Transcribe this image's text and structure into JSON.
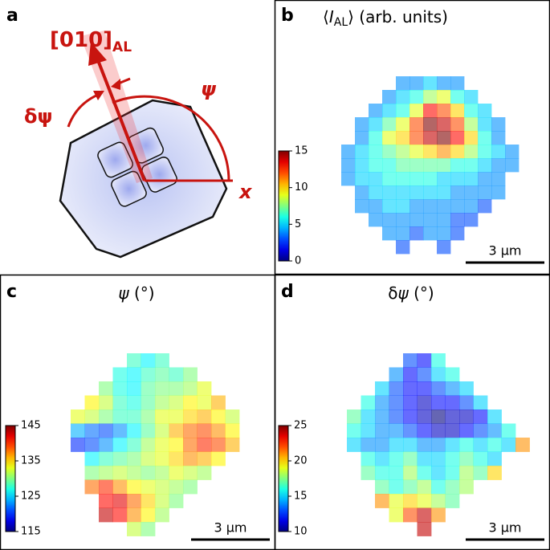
{
  "panels": {
    "a": {
      "label": "a",
      "axis_label": "[010]",
      "axis_sub": "AL",
      "angle": "ψ",
      "delta": "δψ",
      "x_label": "x"
    },
    "b": {
      "label": "b",
      "title": {
        "open": "⟨",
        "symbol": "I",
        "subscript": "AL",
        "rest": "⟩ (arb. units)"
      },
      "colorbar": {
        "lim": [
          0,
          15
        ],
        "ticks": [
          0,
          5,
          10,
          15
        ]
      },
      "scale_bar": "3 μm",
      "grid": [
        [
          null,
          null,
          null,
          null,
          4,
          4,
          5,
          4,
          4,
          null,
          null,
          null,
          null
        ],
        [
          null,
          null,
          null,
          4,
          5,
          6,
          8,
          9,
          6,
          5,
          null,
          null,
          null
        ],
        [
          null,
          null,
          4,
          5,
          6,
          9,
          13,
          12,
          10,
          6,
          5,
          null,
          null
        ],
        [
          null,
          4,
          5,
          7,
          9,
          12,
          15,
          14,
          12,
          8,
          5,
          4,
          null
        ],
        [
          null,
          4,
          6,
          9,
          10,
          12,
          14,
          15,
          13,
          10,
          6,
          4,
          null
        ],
        [
          4,
          5,
          6,
          7,
          8,
          9,
          10,
          11,
          10,
          8,
          6,
          5,
          4
        ],
        [
          4,
          5,
          6,
          6,
          7,
          7,
          7,
          7,
          6,
          6,
          5,
          4,
          4
        ],
        [
          4,
          5,
          5,
          6,
          6,
          6,
          6,
          5,
          5,
          5,
          4,
          4,
          null
        ],
        [
          null,
          4,
          5,
          5,
          5,
          5,
          5,
          5,
          4,
          4,
          4,
          4,
          null
        ],
        [
          null,
          4,
          4,
          5,
          5,
          4,
          4,
          4,
          4,
          4,
          3,
          null,
          null
        ],
        [
          null,
          null,
          4,
          4,
          4,
          4,
          4,
          4,
          3,
          3,
          null,
          null,
          null
        ],
        [
          null,
          null,
          null,
          4,
          4,
          3,
          4,
          4,
          3,
          null,
          null,
          null,
          null
        ],
        [
          null,
          null,
          null,
          null,
          3,
          null,
          null,
          3,
          null,
          null,
          null,
          null,
          null
        ]
      ]
    },
    "c": {
      "label": "c",
      "title": {
        "symbol": "ψ",
        "rest": " (°)"
      },
      "colorbar": {
        "lim": [
          115,
          145
        ],
        "ticks": [
          115,
          125,
          135,
          145
        ]
      },
      "scale_bar": "3 μm",
      "grid": [
        [
          null,
          null,
          null,
          null,
          128,
          126,
          128,
          null,
          null,
          null,
          null,
          null,
          null
        ],
        [
          null,
          null,
          null,
          127,
          126,
          128,
          129,
          128,
          130,
          null,
          null,
          null,
          null
        ],
        [
          null,
          null,
          130,
          127,
          126,
          129,
          130,
          130,
          131,
          133,
          null,
          null,
          null
        ],
        [
          null,
          134,
          132,
          128,
          127,
          129,
          131,
          132,
          134,
          133,
          136,
          null,
          null
        ],
        [
          133,
          132,
          130,
          128,
          128,
          130,
          133,
          133,
          135,
          136,
          134,
          132,
          null
        ],
        [
          124,
          122,
          121,
          123,
          126,
          129,
          132,
          136,
          138,
          139,
          137,
          134,
          null
        ],
        [
          120,
          121,
          123,
          126,
          128,
          131,
          133,
          134,
          138,
          140,
          139,
          136,
          null
        ],
        [
          null,
          126,
          128,
          129,
          130,
          132,
          133,
          135,
          137,
          136,
          134,
          null,
          null
        ],
        [
          null,
          130,
          131,
          132,
          131,
          130,
          131,
          133,
          132,
          131,
          null,
          null,
          null
        ],
        [
          null,
          138,
          140,
          137,
          134,
          133,
          132,
          131,
          130,
          null,
          null,
          null,
          null
        ],
        [
          null,
          null,
          141,
          142,
          138,
          135,
          132,
          130,
          null,
          null,
          null,
          null,
          null
        ],
        [
          null,
          null,
          143,
          141,
          137,
          134,
          131,
          null,
          null,
          null,
          null,
          null,
          null
        ],
        [
          null,
          null,
          null,
          null,
          132,
          130,
          null,
          null,
          null,
          null,
          null,
          null,
          null
        ]
      ]
    },
    "d": {
      "label": "d",
      "title": {
        "prefix": "δ",
        "symbol": "ψ",
        "rest": " (°)"
      },
      "colorbar": {
        "lim": [
          10,
          25
        ],
        "ticks": [
          10,
          15,
          20,
          25
        ]
      },
      "scale_bar": "3 μm",
      "grid": [
        [
          null,
          null,
          null,
          null,
          13,
          12,
          16,
          null,
          null,
          null,
          null,
          null,
          null
        ],
        [
          null,
          null,
          null,
          14,
          12,
          13,
          15,
          16,
          null,
          null,
          null,
          null,
          null
        ],
        [
          null,
          null,
          15,
          13,
          12,
          12,
          13,
          14,
          15,
          null,
          null,
          null,
          null
        ],
        [
          null,
          16,
          14,
          13,
          12,
          11,
          12,
          12,
          13,
          15,
          null,
          null,
          null
        ],
        [
          17,
          15,
          14,
          13,
          12,
          11,
          10,
          11,
          11,
          12,
          15,
          null,
          null
        ],
        [
          16,
          15,
          14,
          14,
          13,
          12,
          11,
          11,
          12,
          13,
          14,
          16,
          null
        ],
        [
          15,
          14,
          14,
          15,
          15,
          14,
          14,
          15,
          16,
          15,
          16,
          15,
          21
        ],
        [
          null,
          16,
          15,
          16,
          17,
          15,
          15,
          16,
          17,
          16,
          15,
          null,
          null
        ],
        [
          null,
          17,
          16,
          16,
          18,
          16,
          15,
          16,
          18,
          17,
          20,
          null,
          null
        ],
        [
          null,
          null,
          17,
          16,
          17,
          18,
          16,
          17,
          18,
          null,
          null,
          null,
          null
        ],
        [
          null,
          null,
          21,
          19,
          20,
          19,
          18,
          17,
          null,
          null,
          null,
          null,
          null
        ],
        [
          null,
          null,
          null,
          19,
          22,
          24,
          21,
          null,
          null,
          null,
          null,
          null,
          null
        ],
        [
          null,
          null,
          null,
          null,
          null,
          24,
          null,
          null,
          null,
          null,
          null,
          null,
          null
        ]
      ]
    }
  }
}
